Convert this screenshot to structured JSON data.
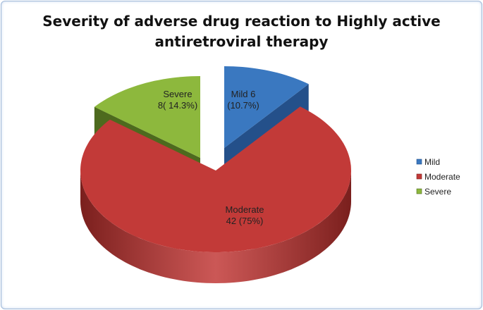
{
  "chart_data": {
    "type": "pie",
    "title": "Severity of adverse drug reaction to Highly active antiretroviral therapy",
    "title_lines": [
      "Severity of adverse drug reaction to Highly active",
      "antiretroviral therapy"
    ],
    "style": "3d-exploded",
    "legend_position": "right",
    "slices": [
      {
        "name": "Mild",
        "value": 6,
        "percent": 10.7,
        "label_lines": [
          "Mild  6",
          "(10.7%)"
        ],
        "color": "#3a78c0",
        "dark": "#24508a"
      },
      {
        "name": "Moderate",
        "value": 42,
        "percent": 75,
        "label_lines": [
          "Moderate",
          "42 (75%)"
        ],
        "color": "#c23a38",
        "dark": "#7a1f1d"
      },
      {
        "name": "Severe",
        "value": 8,
        "percent": 14.3,
        "label_lines": [
          "Severe",
          "8( 14.3%)"
        ],
        "color": "#8db83d",
        "dark": "#4d6a1e"
      }
    ]
  }
}
